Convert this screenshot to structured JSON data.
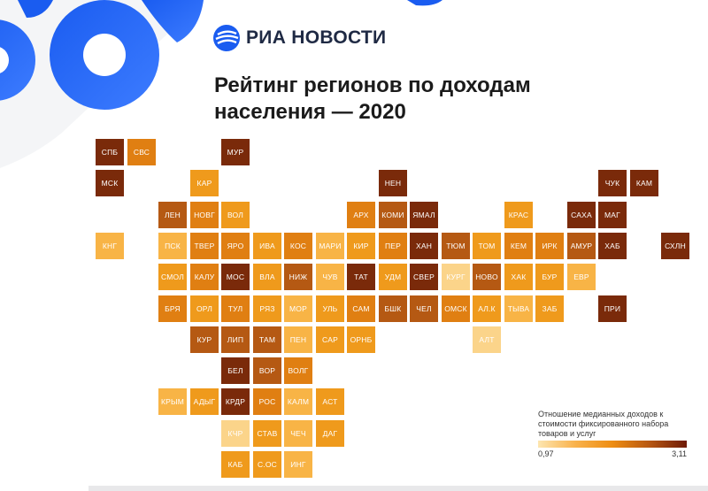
{
  "header": {
    "brand": "РИА НОВОСТИ",
    "title_line1": "Рейтинг регионов по доходам",
    "title_line2": "населения — 2020"
  },
  "legend": {
    "caption_lines": [
      "Отношение медианных доходов к",
      "стоимости фиксированного набора",
      "товаров и услуг"
    ],
    "min_label": "0,97",
    "max_label": "3,11",
    "color_min": "#fde6b0",
    "color_max": "#6e1a06"
  },
  "palette": {
    "1": "#fbd48a",
    "2": "#f8b446",
    "3": "#ef9a1c",
    "4": "#e07f12",
    "5": "#b55913",
    "6": "#7a2a0a"
  },
  "map": {
    "regions": [
      {
        "label": "СПБ",
        "row": 0,
        "col": 0,
        "level": 6
      },
      {
        "label": "СВС",
        "row": 0,
        "col": 1,
        "level": 4
      },
      {
        "label": "МУР",
        "row": 0,
        "col": 4,
        "level": 6
      },
      {
        "label": "МСК",
        "row": 1,
        "col": 0,
        "level": 6
      },
      {
        "label": "КАР",
        "row": 1,
        "col": 3,
        "level": 3
      },
      {
        "label": "НЕН",
        "row": 1,
        "col": 9,
        "level": 6
      },
      {
        "label": "ЧУК",
        "row": 1,
        "col": 16,
        "level": 6
      },
      {
        "label": "КАМ",
        "row": 1,
        "col": 17,
        "level": 6
      },
      {
        "label": "ЛЕН",
        "row": 2,
        "col": 2,
        "level": 5
      },
      {
        "label": "НОВГ",
        "row": 2,
        "col": 3,
        "level": 4
      },
      {
        "label": "ВОЛ",
        "row": 2,
        "col": 4,
        "level": 3
      },
      {
        "label": "АРХ",
        "row": 2,
        "col": 8,
        "level": 4
      },
      {
        "label": "КОМИ",
        "row": 2,
        "col": 9,
        "level": 5
      },
      {
        "label": "ЯМАЛ",
        "row": 2,
        "col": 10,
        "level": 6
      },
      {
        "label": "КРАС",
        "row": 2,
        "col": 13,
        "level": 3
      },
      {
        "label": "САХА",
        "row": 2,
        "col": 15,
        "level": 6
      },
      {
        "label": "МАГ",
        "row": 2,
        "col": 16,
        "level": 6
      },
      {
        "label": "КНГ",
        "row": 3,
        "col": 0,
        "level": 2
      },
      {
        "label": "ПСК",
        "row": 3,
        "col": 2,
        "level": 2
      },
      {
        "label": "ТВЕР",
        "row": 3,
        "col": 3,
        "level": 4
      },
      {
        "label": "ЯРО",
        "row": 3,
        "col": 4,
        "level": 4
      },
      {
        "label": "ИВА",
        "row": 3,
        "col": 5,
        "level": 3
      },
      {
        "label": "КОС",
        "row": 3,
        "col": 6,
        "level": 4
      },
      {
        "label": "МАРИ",
        "row": 3,
        "col": 7,
        "level": 2
      },
      {
        "label": "КИР",
        "row": 3,
        "col": 8,
        "level": 3
      },
      {
        "label": "ПЕР",
        "row": 3,
        "col": 9,
        "level": 4
      },
      {
        "label": "ХАН",
        "row": 3,
        "col": 10,
        "level": 6
      },
      {
        "label": "ТЮМ",
        "row": 3,
        "col": 11,
        "level": 5
      },
      {
        "label": "ТОМ",
        "row": 3,
        "col": 12,
        "level": 3
      },
      {
        "label": "КЕМ",
        "row": 3,
        "col": 13,
        "level": 4
      },
      {
        "label": "ИРК",
        "row": 3,
        "col": 14,
        "level": 4
      },
      {
        "label": "АМУР",
        "row": 3,
        "col": 15,
        "level": 5
      },
      {
        "label": "ХАБ",
        "row": 3,
        "col": 16,
        "level": 6
      },
      {
        "label": "СХЛН",
        "row": 3,
        "col": 18,
        "level": 6
      },
      {
        "label": "СМОЛ",
        "row": 4,
        "col": 2,
        "level": 3
      },
      {
        "label": "КАЛУ",
        "row": 4,
        "col": 3,
        "level": 4
      },
      {
        "label": "МОС",
        "row": 4,
        "col": 4,
        "level": 6
      },
      {
        "label": "ВЛА",
        "row": 4,
        "col": 5,
        "level": 3
      },
      {
        "label": "НИЖ",
        "row": 4,
        "col": 6,
        "level": 5
      },
      {
        "label": "ЧУВ",
        "row": 4,
        "col": 7,
        "level": 2
      },
      {
        "label": "ТАТ",
        "row": 4,
        "col": 8,
        "level": 6
      },
      {
        "label": "УДМ",
        "row": 4,
        "col": 9,
        "level": 3
      },
      {
        "label": "СВЕР",
        "row": 4,
        "col": 10,
        "level": 6
      },
      {
        "label": "КУРГ",
        "row": 4,
        "col": 11,
        "level": 1
      },
      {
        "label": "НОВО",
        "row": 4,
        "col": 12,
        "level": 5
      },
      {
        "label": "ХАК",
        "row": 4,
        "col": 13,
        "level": 3
      },
      {
        "label": "БУР",
        "row": 4,
        "col": 14,
        "level": 3
      },
      {
        "label": "ЕВР",
        "row": 4,
        "col": 15,
        "level": 2
      },
      {
        "label": "БРЯ",
        "row": 5,
        "col": 2,
        "level": 4
      },
      {
        "label": "ОРЛ",
        "row": 5,
        "col": 3,
        "level": 3
      },
      {
        "label": "ТУЛ",
        "row": 5,
        "col": 4,
        "level": 4
      },
      {
        "label": "РЯЗ",
        "row": 5,
        "col": 5,
        "level": 3
      },
      {
        "label": "МОР",
        "row": 5,
        "col": 6,
        "level": 2
      },
      {
        "label": "УЛЬ",
        "row": 5,
        "col": 7,
        "level": 3
      },
      {
        "label": "САМ",
        "row": 5,
        "col": 8,
        "level": 4
      },
      {
        "label": "БШК",
        "row": 5,
        "col": 9,
        "level": 5
      },
      {
        "label": "ЧЕЛ",
        "row": 5,
        "col": 10,
        "level": 5
      },
      {
        "label": "ОМСК",
        "row": 5,
        "col": 11,
        "level": 4
      },
      {
        "label": "АЛ.К",
        "row": 5,
        "col": 12,
        "level": 3
      },
      {
        "label": "ТЫВА",
        "row": 5,
        "col": 13,
        "level": 2
      },
      {
        "label": "ЗАБ",
        "row": 5,
        "col": 14,
        "level": 3
      },
      {
        "label": "ПРИ",
        "row": 5,
        "col": 16,
        "level": 6
      },
      {
        "label": "КУР",
        "row": 6,
        "col": 3,
        "level": 5
      },
      {
        "label": "ЛИП",
        "row": 6,
        "col": 4,
        "level": 5
      },
      {
        "label": "ТАМ",
        "row": 6,
        "col": 5,
        "level": 5
      },
      {
        "label": "ПЕН",
        "row": 6,
        "col": 6,
        "level": 2
      },
      {
        "label": "САР",
        "row": 6,
        "col": 7,
        "level": 3
      },
      {
        "label": "ОРНБ",
        "row": 6,
        "col": 8,
        "level": 3
      },
      {
        "label": "АЛТ",
        "row": 6,
        "col": 12,
        "level": 1
      },
      {
        "label": "БЕЛ",
        "row": 7,
        "col": 4,
        "level": 6
      },
      {
        "label": "ВОР",
        "row": 7,
        "col": 5,
        "level": 5
      },
      {
        "label": "ВОЛГ",
        "row": 7,
        "col": 6,
        "level": 4
      },
      {
        "label": "КРЫМ",
        "row": 8,
        "col": 2,
        "level": 2
      },
      {
        "label": "АДЫГ",
        "row": 8,
        "col": 3,
        "level": 3
      },
      {
        "label": "КРДР",
        "row": 8,
        "col": 4,
        "level": 6
      },
      {
        "label": "РОС",
        "row": 8,
        "col": 5,
        "level": 4
      },
      {
        "label": "КАЛМ",
        "row": 8,
        "col": 6,
        "level": 2
      },
      {
        "label": "АСТ",
        "row": 8,
        "col": 7,
        "level": 3
      },
      {
        "label": "КЧР",
        "row": 9,
        "col": 4,
        "level": 1
      },
      {
        "label": "СТАВ",
        "row": 9,
        "col": 5,
        "level": 3
      },
      {
        "label": "ЧЕЧ",
        "row": 9,
        "col": 6,
        "level": 2
      },
      {
        "label": "ДАГ",
        "row": 9,
        "col": 7,
        "level": 3
      },
      {
        "label": "КАБ",
        "row": 10,
        "col": 4,
        "level": 3
      },
      {
        "label": "С.ОС",
        "row": 10,
        "col": 5,
        "level": 3
      },
      {
        "label": "ИНГ",
        "row": 10,
        "col": 6,
        "level": 2
      }
    ]
  }
}
